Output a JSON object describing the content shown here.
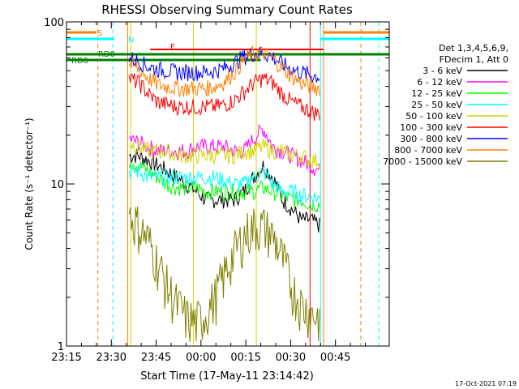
{
  "chart_data": {
    "type": "line",
    "title": "RHESSI Observing Summary Count Rates",
    "xlabel": "Start Time (17-May-11 23:14:42)",
    "ylabel": "Count Rate (s⁻¹ detector⁻¹)",
    "yscale": "log",
    "ylim": [
      1,
      100
    ],
    "xlim_minutes_from_2315": [
      0,
      108
    ],
    "x_ticks": [
      "23:15",
      "23:30",
      "23:45",
      "00:00",
      "00:15",
      "00:30",
      "00:45"
    ],
    "y_ticks": [
      "1",
      "10",
      "100"
    ],
    "legend_header": [
      "Det 1,3,4,5,6,9,",
      "FDecim 1, Att 0"
    ],
    "legend_placement": "right",
    "flag_labels": {
      "s": "S",
      "n": "N",
      "f": "F",
      "rd0": "RD0",
      "rd6": "RD6"
    },
    "series": [
      {
        "name": "3 - 6 keV",
        "color": "#000000",
        "values": [
          15,
          15,
          14,
          13,
          12,
          11,
          10,
          9,
          8,
          8,
          8,
          8,
          9,
          11,
          13,
          11,
          8,
          7,
          6,
          6,
          5.5
        ]
      },
      {
        "name": "6 - 12 keV",
        "color": "#ff00ff",
        "values": [
          19,
          18,
          17,
          16,
          16,
          16,
          16,
          17,
          17,
          17,
          17,
          16,
          16,
          19,
          22,
          17,
          16,
          15,
          14,
          13,
          12
        ]
      },
      {
        "name": "12 - 25 keV",
        "color": "#00ff00",
        "values": [
          14,
          13,
          12,
          11,
          10,
          9.5,
          9.5,
          9.5,
          9,
          9,
          9,
          9,
          9,
          9,
          9.5,
          9,
          8.5,
          8,
          8,
          7.5,
          7.5
        ]
      },
      {
        "name": "25 - 50 keV",
        "color": "#00ffff",
        "values": [
          12,
          12,
          11,
          11,
          11,
          11,
          11,
          11,
          11,
          11,
          10.5,
          10,
          10,
          11,
          12,
          10,
          9,
          9,
          8.5,
          8.5,
          8
        ]
      },
      {
        "name": "50 - 100 keV",
        "color": "#d4d400",
        "values": [
          18,
          17,
          16,
          16,
          16,
          15,
          15,
          15,
          15,
          15,
          15,
          15,
          16,
          16,
          17,
          16,
          16,
          15,
          15,
          14,
          14
        ]
      },
      {
        "name": "100 - 300 keV",
        "color": "#ff0000",
        "values": [
          45,
          42,
          36,
          32,
          31,
          30,
          30,
          30,
          30,
          30,
          31,
          33,
          37,
          42,
          45,
          42,
          36,
          32,
          30,
          28,
          27
        ]
      },
      {
        "name": "300 - 800 keV",
        "color": "#0000ff",
        "values": [
          60,
          57,
          53,
          51,
          50,
          49,
          49,
          49,
          49,
          50,
          52,
          56,
          61,
          64,
          64,
          61,
          55,
          51,
          49,
          47,
          46
        ]
      },
      {
        "name": "800 - 7000 keV",
        "color": "#ff8000",
        "values": [
          55,
          51,
          45,
          41,
          40,
          39,
          39,
          39,
          39,
          40,
          43,
          49,
          58,
          64,
          64,
          60,
          52,
          46,
          42,
          40,
          39
        ]
      },
      {
        "name": "7000 - 15000 keV",
        "color": "#808000",
        "values": [
          6.5,
          5.5,
          4.5,
          3.2,
          2.3,
          1.8,
          1.5,
          1.4,
          1.6,
          2,
          2.8,
          3.8,
          4.8,
          5.5,
          5.5,
          4.8,
          3.5,
          2.3,
          1.8,
          1.6,
          1.5
        ]
      }
    ],
    "timestamp": "17-Oct-2021 07:19"
  }
}
